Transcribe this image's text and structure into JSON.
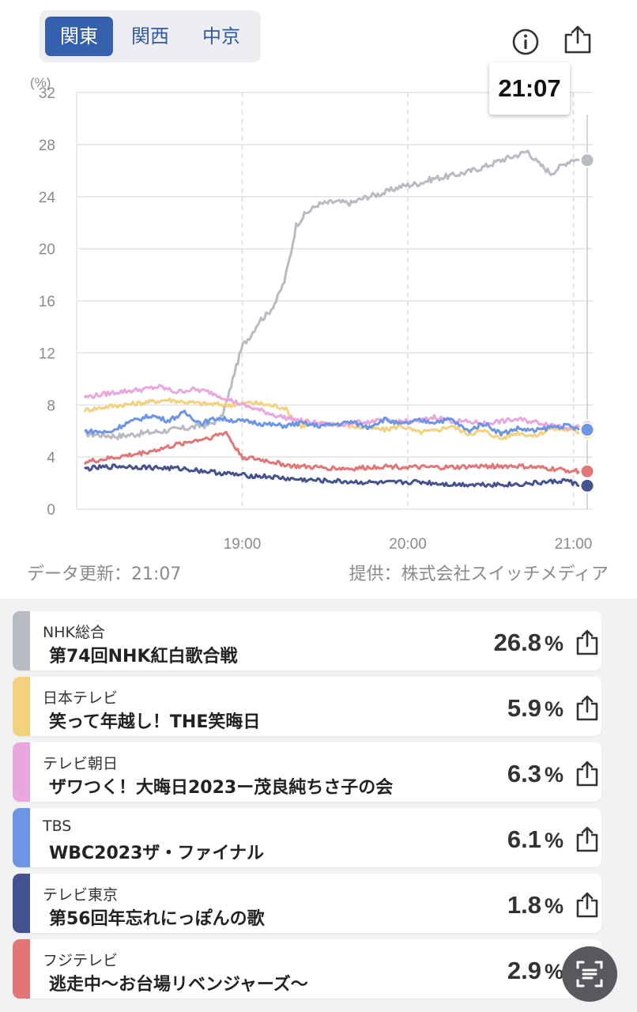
{
  "region_tabs": [
    {
      "label": "関東",
      "active": true
    },
    {
      "label": "関西",
      "active": false
    },
    {
      "label": "中京",
      "active": false
    }
  ],
  "header_icons": [
    "info-icon",
    "share-icon"
  ],
  "tooltip_time": "21:07",
  "chart_data": {
    "type": "line",
    "y_unit_label": "(%)",
    "ylim": [
      0,
      32
    ],
    "y_ticks": [
      "0",
      "4",
      "8",
      "12",
      "16",
      "20",
      "24",
      "28",
      "32"
    ],
    "x_tick_labels": [
      "19:00",
      "20:00",
      "21:00"
    ],
    "x_range": [
      "18:00",
      "21:07"
    ],
    "grid": true,
    "series": [
      {
        "color": "#b9bbc2",
        "keypoints": [
          [
            0,
            5.8
          ],
          [
            20,
            5.6
          ],
          [
            40,
            5.9
          ],
          [
            60,
            6.2
          ],
          [
            75,
            6.5
          ],
          [
            82,
            7.0
          ],
          [
            86,
            8.5
          ],
          [
            90,
            10.5
          ],
          [
            95,
            12.6
          ],
          [
            100,
            13.4
          ],
          [
            105,
            14.5
          ],
          [
            110,
            15.0
          ],
          [
            115,
            16.0
          ],
          [
            120,
            17.5
          ],
          [
            124,
            19.8
          ],
          [
            127,
            21.8
          ],
          [
            132,
            22.6
          ],
          [
            140,
            23.4
          ],
          [
            150,
            23.6
          ],
          [
            160,
            23.5
          ],
          [
            170,
            24.0
          ],
          [
            180,
            24.3
          ],
          [
            190,
            24.8
          ],
          [
            200,
            25.0
          ],
          [
            210,
            25.4
          ],
          [
            220,
            25.6
          ],
          [
            230,
            25.9
          ],
          [
            240,
            26.3
          ],
          [
            250,
            26.8
          ],
          [
            260,
            27.2
          ],
          [
            266,
            27.5
          ],
          [
            272,
            26.6
          ],
          [
            280,
            25.8
          ],
          [
            288,
            26.5
          ],
          [
            293,
            26.9
          ],
          [
            297,
            26.8
          ]
        ]
      },
      {
        "color": "#f3d27f",
        "keypoints": [
          [
            0,
            7.6
          ],
          [
            15,
            7.9
          ],
          [
            30,
            8.1
          ],
          [
            50,
            8.4
          ],
          [
            70,
            8.1
          ],
          [
            90,
            8.0
          ],
          [
            100,
            8.2
          ],
          [
            110,
            8.0
          ],
          [
            120,
            7.8
          ],
          [
            125,
            7.0
          ],
          [
            130,
            6.4
          ],
          [
            145,
            6.6
          ],
          [
            165,
            6.3
          ],
          [
            180,
            6.1
          ],
          [
            190,
            6.4
          ],
          [
            200,
            5.9
          ],
          [
            210,
            6.0
          ],
          [
            220,
            6.4
          ],
          [
            230,
            5.8
          ],
          [
            240,
            6.0
          ],
          [
            250,
            5.4
          ],
          [
            260,
            5.9
          ],
          [
            270,
            5.6
          ],
          [
            280,
            6.2
          ],
          [
            290,
            6.1
          ],
          [
            297,
            5.9
          ]
        ]
      },
      {
        "color": "#e9a6df",
        "keypoints": [
          [
            0,
            8.6
          ],
          [
            20,
            9.0
          ],
          [
            35,
            9.2
          ],
          [
            45,
            9.4
          ],
          [
            55,
            9.0
          ],
          [
            65,
            9.2
          ],
          [
            75,
            9.0
          ],
          [
            85,
            8.5
          ],
          [
            95,
            8.0
          ],
          [
            105,
            7.6
          ],
          [
            115,
            7.2
          ],
          [
            125,
            6.9
          ],
          [
            135,
            6.7
          ],
          [
            145,
            6.5
          ],
          [
            160,
            6.6
          ],
          [
            180,
            6.8
          ],
          [
            200,
            6.7
          ],
          [
            210,
            7.1
          ],
          [
            220,
            6.8
          ],
          [
            240,
            6.6
          ],
          [
            260,
            6.9
          ],
          [
            280,
            6.5
          ],
          [
            290,
            6.3
          ],
          [
            297,
            6.3
          ]
        ]
      },
      {
        "color": "#6c95e6",
        "keypoints": [
          [
            0,
            6.0
          ],
          [
            15,
            5.9
          ],
          [
            25,
            6.6
          ],
          [
            40,
            7.2
          ],
          [
            50,
            6.8
          ],
          [
            60,
            7.4
          ],
          [
            70,
            6.6
          ],
          [
            80,
            7.0
          ],
          [
            90,
            6.8
          ],
          [
            100,
            6.7
          ],
          [
            110,
            6.5
          ],
          [
            120,
            6.4
          ],
          [
            130,
            6.6
          ],
          [
            140,
            6.4
          ],
          [
            150,
            6.5
          ],
          [
            160,
            6.7
          ],
          [
            170,
            6.3
          ],
          [
            180,
            6.9
          ],
          [
            190,
            6.5
          ],
          [
            200,
            6.8
          ],
          [
            210,
            6.7
          ],
          [
            220,
            6.9
          ],
          [
            230,
            6.0
          ],
          [
            240,
            6.6
          ],
          [
            250,
            5.8
          ],
          [
            260,
            6.2
          ],
          [
            270,
            6.0
          ],
          [
            280,
            6.3
          ],
          [
            290,
            6.4
          ],
          [
            297,
            6.1
          ]
        ]
      },
      {
        "color": "#44528f",
        "keypoints": [
          [
            0,
            3.1
          ],
          [
            20,
            3.3
          ],
          [
            40,
            3.2
          ],
          [
            60,
            3.1
          ],
          [
            80,
            2.8
          ],
          [
            95,
            2.6
          ],
          [
            110,
            2.5
          ],
          [
            125,
            2.3
          ],
          [
            140,
            2.2
          ],
          [
            160,
            2.1
          ],
          [
            180,
            2.0
          ],
          [
            200,
            2.1
          ],
          [
            220,
            1.9
          ],
          [
            240,
            1.9
          ],
          [
            260,
            1.9
          ],
          [
            280,
            2.1
          ],
          [
            290,
            2.2
          ],
          [
            297,
            1.8
          ]
        ]
      },
      {
        "color": "#e27676",
        "keypoints": [
          [
            0,
            3.6
          ],
          [
            15,
            3.9
          ],
          [
            30,
            4.2
          ],
          [
            45,
            4.6
          ],
          [
            60,
            5.1
          ],
          [
            75,
            5.5
          ],
          [
            85,
            5.9
          ],
          [
            90,
            4.8
          ],
          [
            95,
            4.0
          ],
          [
            110,
            3.7
          ],
          [
            125,
            3.3
          ],
          [
            140,
            3.2
          ],
          [
            160,
            3.1
          ],
          [
            180,
            3.3
          ],
          [
            200,
            3.2
          ],
          [
            220,
            3.2
          ],
          [
            240,
            3.3
          ],
          [
            260,
            3.3
          ],
          [
            280,
            3.1
          ],
          [
            297,
            2.9
          ]
        ]
      }
    ]
  },
  "footer": {
    "updated": "データ更新：21:07",
    "source": "提供：株式会社スイッチメディア"
  },
  "channels": [
    {
      "channel": "NHK総合",
      "program": "第74回NHK紅白歌合戦",
      "rating": "26.8",
      "unit": "%",
      "color": "#b9bbc2"
    },
    {
      "channel": "日本テレビ",
      "program": "笑って年越し！THE笑晦日",
      "rating": "5.9",
      "unit": "%",
      "color": "#f3d27f"
    },
    {
      "channel": "テレビ朝日",
      "program": "ザワつく！大晦日2023ー茂良純ちさ子の会",
      "rating": "6.3",
      "unit": "%",
      "color": "#e9a6df"
    },
    {
      "channel": "TBS",
      "program": "WBC2023ザ・ファイナル",
      "rating": "6.1",
      "unit": "%",
      "color": "#6c95e6"
    },
    {
      "channel": "テレビ東京",
      "program": "第56回年忘れにっぽんの歌",
      "rating": "1.8",
      "unit": "%",
      "color": "#44528f"
    },
    {
      "channel": "フジテレビ",
      "program": "逃走中～お台場リベンジャーズ～",
      "rating": "2.9",
      "unit": "%",
      "color": "#e27676"
    }
  ]
}
